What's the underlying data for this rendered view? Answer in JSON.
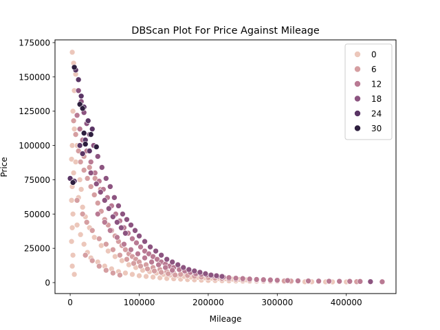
{
  "chart_data": {
    "type": "scatter",
    "title": "DBScan Plot For Price Against Mileage",
    "xlabel": "Mileage",
    "ylabel": "Price",
    "xlim": [
      -22000,
      472000
    ],
    "ylim": [
      -8000,
      177000
    ],
    "xticks": [
      0,
      100000,
      200000,
      300000,
      400000
    ],
    "xtick_labels": [
      "0",
      "100000",
      "200000",
      "300000",
      "400000"
    ],
    "yticks": [
      0,
      25000,
      50000,
      75000,
      100000,
      125000,
      150000,
      175000
    ],
    "ytick_labels": [
      "0",
      "25000",
      "50000",
      "75000",
      "100000",
      "125000",
      "150000",
      "175000"
    ],
    "grid": false,
    "legend": {
      "position": "top-right",
      "entries": [
        {
          "label": "0",
          "color": "#ecc7bb"
        },
        {
          "label": "6",
          "color": "#d59ea1"
        },
        {
          "label": "12",
          "color": "#b97a93"
        },
        {
          "label": "18",
          "color": "#8c5480"
        },
        {
          "label": "24",
          "color": "#5a3565"
        },
        {
          "label": "30",
          "color": "#2d1e3e"
        }
      ]
    },
    "series": [
      {
        "name": "0",
        "color": "#ecc7bb",
        "points": [
          [
            3000,
            168000
          ],
          [
            5000,
            160000
          ],
          [
            8000,
            152000
          ],
          [
            6000,
            140000
          ],
          [
            4000,
            125000
          ],
          [
            6000,
            112000
          ],
          [
            3000,
            100000
          ],
          [
            2000,
            90000
          ],
          [
            5000,
            80000
          ],
          [
            3000,
            70000
          ],
          [
            2000,
            60000
          ],
          [
            4000,
            50000
          ],
          [
            3000,
            40000
          ],
          [
            2000,
            30000
          ],
          [
            4000,
            20000
          ],
          [
            3000,
            12000
          ],
          [
            6000,
            6000
          ],
          [
            10000,
            42000
          ],
          [
            15000,
            35000
          ],
          [
            20000,
            28000
          ],
          [
            25000,
            22000
          ],
          [
            30000,
            18000
          ],
          [
            40000,
            15000
          ],
          [
            50000,
            12000
          ],
          [
            60000,
            10000
          ],
          [
            70000,
            8000
          ],
          [
            80000,
            7000
          ],
          [
            90000,
            6000
          ],
          [
            100000,
            5000
          ],
          [
            110000,
            4500
          ],
          [
            120000,
            4000
          ],
          [
            130000,
            3500
          ],
          [
            140000,
            3000
          ],
          [
            150000,
            2800
          ],
          [
            160000,
            2500
          ],
          [
            170000,
            2200
          ],
          [
            180000,
            2000
          ],
          [
            190000,
            1800
          ],
          [
            200000,
            1600
          ],
          [
            210000,
            1500
          ],
          [
            220000,
            1400
          ],
          [
            230000,
            1300
          ],
          [
            240000,
            1200
          ],
          [
            250000,
            1100
          ],
          [
            260000,
            1000
          ],
          [
            270000,
            950
          ],
          [
            280000,
            900
          ],
          [
            290000,
            850
          ],
          [
            300000,
            800
          ],
          [
            310000,
            750
          ],
          [
            320000,
            700
          ],
          [
            330000,
            650
          ],
          [
            340000,
            600
          ],
          [
            350000,
            600
          ],
          [
            360000,
            550
          ],
          [
            370000,
            550
          ],
          [
            380000,
            500
          ],
          [
            390000,
            500
          ],
          [
            400000,
            500
          ],
          [
            12000,
            62000
          ],
          [
            18000,
            55000
          ],
          [
            22000,
            48000
          ],
          [
            28000,
            40000
          ],
          [
            35000,
            33000
          ],
          [
            45000,
            27000
          ],
          [
            55000,
            23000
          ],
          [
            65000,
            19000
          ],
          [
            75000,
            16000
          ],
          [
            85000,
            13000
          ],
          [
            95000,
            11000
          ],
          [
            105000,
            9000
          ],
          [
            115000,
            8000
          ],
          [
            125000,
            7000
          ],
          [
            135000,
            6000
          ],
          [
            145000,
            5500
          ],
          [
            155000,
            5000
          ],
          [
            165000,
            4500
          ],
          [
            175000,
            4000
          ],
          [
            185000,
            3800
          ],
          [
            195000,
            3500
          ],
          [
            205000,
            3200
          ],
          [
            215000,
            3000
          ],
          [
            225000,
            2800
          ],
          [
            235000,
            2500
          ],
          [
            245000,
            2300
          ],
          [
            255000,
            2000
          ],
          [
            8000,
            88000
          ],
          [
            14000,
            75000
          ],
          [
            10000,
            100000
          ],
          [
            16000,
            68000
          ]
        ]
      },
      {
        "name": "6",
        "color": "#d59ea1",
        "points": [
          [
            5000,
            118000
          ],
          [
            8000,
            108000
          ],
          [
            12000,
            96000
          ],
          [
            15000,
            88000
          ],
          [
            20000,
            82000
          ],
          [
            25000,
            76000
          ],
          [
            30000,
            70000
          ],
          [
            35000,
            64000
          ],
          [
            40000,
            58000
          ],
          [
            45000,
            52000
          ],
          [
            50000,
            46000
          ],
          [
            55000,
            42000
          ],
          [
            60000,
            38000
          ],
          [
            65000,
            34000
          ],
          [
            70000,
            30000
          ],
          [
            75000,
            27000
          ],
          [
            80000,
            24000
          ],
          [
            85000,
            21000
          ],
          [
            90000,
            19000
          ],
          [
            95000,
            17000
          ],
          [
            100000,
            15000
          ],
          [
            110000,
            13000
          ],
          [
            120000,
            11000
          ],
          [
            130000,
            9500
          ],
          [
            140000,
            8000
          ],
          [
            150000,
            7000
          ],
          [
            160000,
            6000
          ],
          [
            170000,
            5200
          ],
          [
            180000,
            4600
          ],
          [
            190000,
            4000
          ],
          [
            200000,
            3600
          ],
          [
            210000,
            3200
          ],
          [
            220000,
            2900
          ],
          [
            230000,
            2600
          ],
          [
            240000,
            2300
          ],
          [
            250000,
            2100
          ],
          [
            260000,
            1900
          ],
          [
            270000,
            1700
          ],
          [
            280000,
            1500
          ],
          [
            290000,
            1400
          ],
          [
            300000,
            1300
          ],
          [
            310000,
            1200
          ],
          [
            320000,
            1100
          ],
          [
            330000,
            1000
          ],
          [
            345000,
            900
          ],
          [
            360000,
            850
          ],
          [
            375000,
            800
          ],
          [
            390000,
            750
          ],
          [
            405000,
            700
          ],
          [
            415000,
            650
          ],
          [
            10000,
            60000
          ],
          [
            18000,
            50000
          ],
          [
            24000,
            44000
          ],
          [
            32000,
            38000
          ],
          [
            42000,
            32000
          ],
          [
            52000,
            28000
          ],
          [
            62000,
            24000
          ],
          [
            72000,
            20000
          ],
          [
            82000,
            17000
          ],
          [
            92000,
            14000
          ],
          [
            102000,
            12000
          ],
          [
            112000,
            10000
          ],
          [
            122000,
            8500
          ],
          [
            132000,
            7500
          ],
          [
            142000,
            6500
          ],
          [
            152000,
            5500
          ],
          [
            20000,
            92000
          ],
          [
            28000,
            84000
          ],
          [
            36000,
            76000
          ],
          [
            44000,
            68000
          ],
          [
            22000,
            20000
          ],
          [
            32000,
            16000
          ],
          [
            42000,
            12000
          ],
          [
            52000,
            9000
          ],
          [
            62000,
            7000
          ],
          [
            72000,
            5500
          ]
        ]
      },
      {
        "name": "12",
        "color": "#b97a93",
        "points": [
          [
            10000,
            122000
          ],
          [
            14000,
            112000
          ],
          [
            18000,
            104000
          ],
          [
            24000,
            96000
          ],
          [
            30000,
            88000
          ],
          [
            36000,
            80000
          ],
          [
            42000,
            74000
          ],
          [
            48000,
            68000
          ],
          [
            54000,
            62000
          ],
          [
            60000,
            56000
          ],
          [
            66000,
            50000
          ],
          [
            72000,
            45000
          ],
          [
            78000,
            40000
          ],
          [
            84000,
            36000
          ],
          [
            90000,
            32000
          ],
          [
            96000,
            29000
          ],
          [
            102000,
            26000
          ],
          [
            108000,
            23000
          ],
          [
            114000,
            21000
          ],
          [
            120000,
            19000
          ],
          [
            126000,
            17000
          ],
          [
            132000,
            15000
          ],
          [
            138000,
            13500
          ],
          [
            144000,
            12000
          ],
          [
            150000,
            11000
          ],
          [
            158000,
            9500
          ],
          [
            166000,
            8500
          ],
          [
            174000,
            7500
          ],
          [
            182000,
            6500
          ],
          [
            190000,
            6000
          ],
          [
            198000,
            5500
          ],
          [
            206000,
            5000
          ],
          [
            214000,
            4500
          ],
          [
            222000,
            4000
          ],
          [
            230000,
            3600
          ],
          [
            240000,
            3200
          ],
          [
            250000,
            2900
          ],
          [
            260000,
            2600
          ],
          [
            270000,
            2300
          ],
          [
            280000,
            2100
          ],
          [
            290000,
            1900
          ],
          [
            300000,
            1700
          ],
          [
            315000,
            1500
          ],
          [
            330000,
            1300
          ],
          [
            345000,
            1200
          ],
          [
            360000,
            1100
          ],
          [
            375000,
            1000
          ],
          [
            390000,
            950
          ],
          [
            405000,
            900
          ],
          [
            420000,
            850
          ],
          [
            452000,
            600
          ],
          [
            40000,
            50000
          ],
          [
            50000,
            44000
          ],
          [
            58000,
            38000
          ],
          [
            68000,
            33000
          ],
          [
            78000,
            28000
          ],
          [
            88000,
            24000
          ],
          [
            98000,
            21000
          ],
          [
            108000,
            18000
          ],
          [
            118000,
            15000
          ],
          [
            128000,
            13000
          ],
          [
            138000,
            11000
          ],
          [
            148000,
            9000
          ]
        ]
      },
      {
        "name": "18",
        "color": "#8c5480",
        "points": [
          [
            12000,
            140000
          ],
          [
            16000,
            132000
          ],
          [
            20000,
            124000
          ],
          [
            24000,
            116000
          ],
          [
            28000,
            108000
          ],
          [
            34000,
            100000
          ],
          [
            40000,
            92000
          ],
          [
            46000,
            84000
          ],
          [
            52000,
            76000
          ],
          [
            58000,
            70000
          ],
          [
            64000,
            62000
          ],
          [
            70000,
            56000
          ],
          [
            76000,
            50000
          ],
          [
            82000,
            46000
          ],
          [
            88000,
            42000
          ],
          [
            94000,
            38000
          ],
          [
            100000,
            34000
          ],
          [
            108000,
            30000
          ],
          [
            116000,
            26000
          ],
          [
            124000,
            23000
          ],
          [
            132000,
            20000
          ],
          [
            140000,
            17000
          ],
          [
            148000,
            15000
          ],
          [
            156000,
            13000
          ],
          [
            164000,
            11000
          ],
          [
            172000,
            9500
          ],
          [
            180000,
            8500
          ],
          [
            188000,
            7500
          ],
          [
            196000,
            6500
          ],
          [
            204000,
            5500
          ],
          [
            212000,
            5000
          ],
          [
            220000,
            4500
          ],
          [
            435000,
            700
          ],
          [
            30000,
            80000
          ],
          [
            38000,
            72000
          ],
          [
            44000,
            66000
          ],
          [
            50000,
            60000
          ],
          [
            56000,
            54000
          ],
          [
            62000,
            48000
          ],
          [
            68000,
            44000
          ],
          [
            74000,
            40000
          ],
          [
            80000,
            36000
          ]
        ]
      },
      {
        "name": "24",
        "color": "#5a3565",
        "points": [
          [
            8000,
            155000
          ],
          [
            12000,
            148000
          ],
          [
            16000,
            136000
          ],
          [
            20000,
            128000
          ],
          [
            26000,
            118000
          ],
          [
            32000,
            112000
          ],
          [
            14000,
            100000
          ],
          [
            18000,
            94000
          ],
          [
            0,
            76000
          ],
          [
            6000,
            74000
          ],
          [
            22000,
            104000
          ],
          [
            28000,
            96000
          ]
        ]
      },
      {
        "name": "30",
        "color": "#2d1e3e",
        "points": [
          [
            6000,
            157000
          ],
          [
            14000,
            130000
          ],
          [
            18000,
            127000
          ],
          [
            20000,
            109000
          ],
          [
            22000,
            101000
          ],
          [
            30000,
            108000
          ],
          [
            38000,
            99000
          ],
          [
            4000,
            73000
          ]
        ]
      }
    ]
  }
}
